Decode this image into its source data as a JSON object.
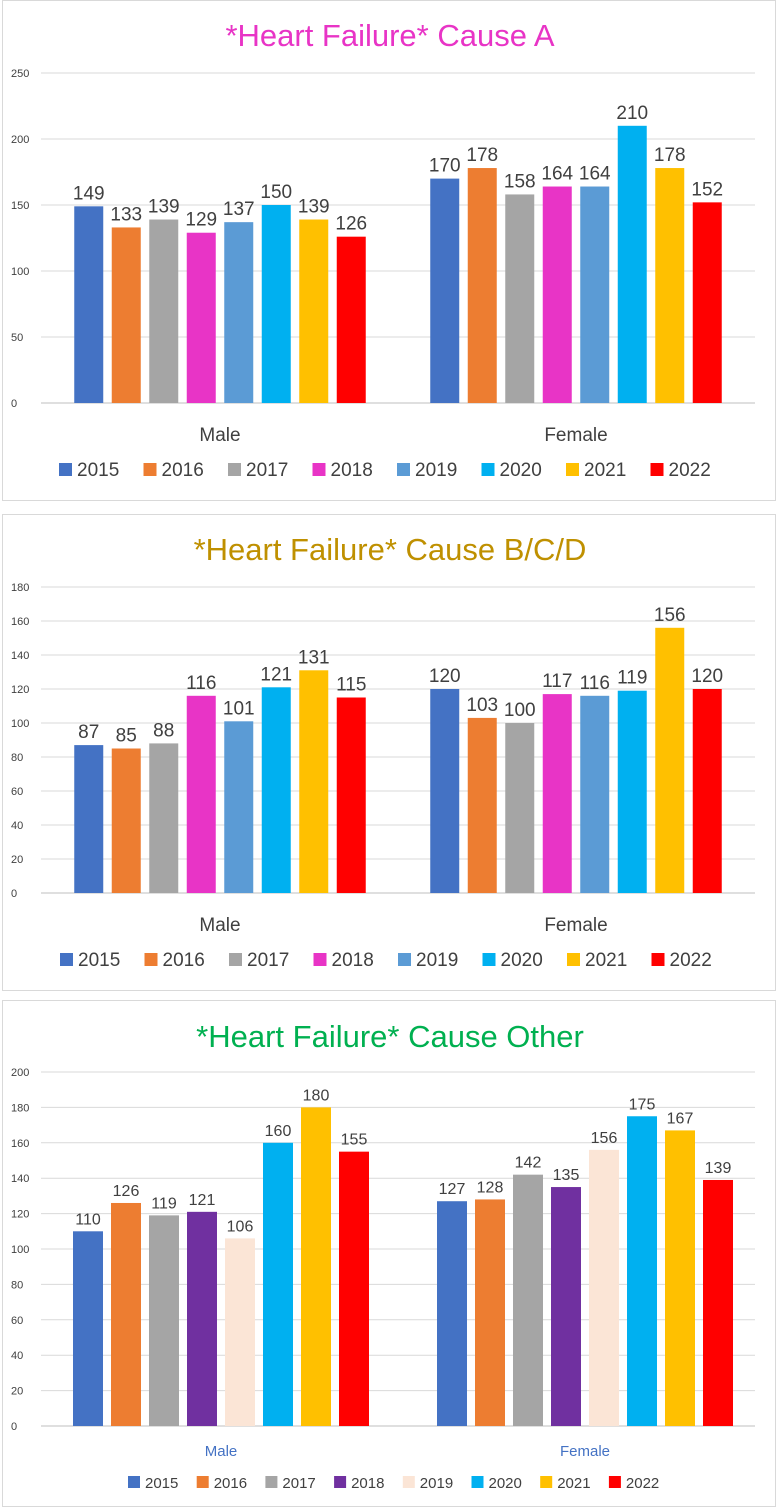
{
  "chart_data": [
    {
      "type": "bar",
      "title": "*Heart Failure* Cause A",
      "title_color": "#e834c6",
      "categories": [
        "Male",
        "Female"
      ],
      "ylim": [
        0,
        250
      ],
      "yticks": [
        "0",
        "50",
        "100",
        "150",
        "200",
        "250"
      ],
      "grid": true,
      "legend": "bottom",
      "series": [
        {
          "name": "2015",
          "color": "#4472c4",
          "values": [
            149,
            170
          ]
        },
        {
          "name": "2016",
          "color": "#ed7d31",
          "values": [
            133,
            178
          ]
        },
        {
          "name": "2017",
          "color": "#a5a5a5",
          "values": [
            139,
            158
          ]
        },
        {
          "name": "2018",
          "color": "#e834c6",
          "values": [
            129,
            164
          ]
        },
        {
          "name": "2019",
          "color": "#5b9bd5",
          "values": [
            137,
            164
          ]
        },
        {
          "name": "2020",
          "color": "#00b0f0",
          "values": [
            150,
            210
          ]
        },
        {
          "name": "2021",
          "color": "#ffc000",
          "values": [
            139,
            178
          ]
        },
        {
          "name": "2022",
          "color": "#ff0000",
          "values": [
            126,
            152
          ]
        }
      ]
    },
    {
      "type": "bar",
      "title": "*Heart Failure* Cause B/C/D",
      "title_color": "#bf9000",
      "categories": [
        "Male",
        "Female"
      ],
      "ylim": [
        0,
        180
      ],
      "yticks": [
        "0",
        "20",
        "40",
        "60",
        "80",
        "100",
        "120",
        "140",
        "160",
        "180"
      ],
      "grid": true,
      "legend": "bottom",
      "series": [
        {
          "name": "2015",
          "color": "#4472c4",
          "values": [
            87,
            120
          ]
        },
        {
          "name": "2016",
          "color": "#ed7d31",
          "values": [
            85,
            103
          ]
        },
        {
          "name": "2017",
          "color": "#a5a5a5",
          "values": [
            88,
            100
          ]
        },
        {
          "name": "2018",
          "color": "#e834c6",
          "values": [
            116,
            117
          ]
        },
        {
          "name": "2019",
          "color": "#5b9bd5",
          "values": [
            101,
            116
          ]
        },
        {
          "name": "2020",
          "color": "#00b0f0",
          "values": [
            121,
            119
          ]
        },
        {
          "name": "2021",
          "color": "#ffc000",
          "values": [
            131,
            156
          ]
        },
        {
          "name": "2022",
          "color": "#ff0000",
          "values": [
            115,
            120
          ]
        }
      ]
    },
    {
      "type": "bar",
      "title": "*Heart Failure* Cause Other",
      "title_color": "#00b050",
      "categories": [
        "Male",
        "Female"
      ],
      "category_label_color": "#4472c4",
      "ylim": [
        0,
        200
      ],
      "yticks": [
        "0",
        "20",
        "40",
        "60",
        "80",
        "100",
        "120",
        "140",
        "160",
        "180",
        "200"
      ],
      "grid": true,
      "legend": "bottom",
      "series": [
        {
          "name": "2015",
          "color": "#4472c4",
          "values": [
            110,
            127
          ]
        },
        {
          "name": "2016",
          "color": "#ed7d31",
          "values": [
            126,
            128
          ]
        },
        {
          "name": "2017",
          "color": "#a5a5a5",
          "values": [
            119,
            142
          ]
        },
        {
          "name": "2018",
          "color": "#7030a0",
          "values": [
            121,
            135
          ]
        },
        {
          "name": "2019",
          "color": "#fbe5d6",
          "values": [
            106,
            156
          ]
        },
        {
          "name": "2020",
          "color": "#00b0f0",
          "values": [
            160,
            175
          ]
        },
        {
          "name": "2021",
          "color": "#ffc000",
          "values": [
            180,
            167
          ]
        },
        {
          "name": "2022",
          "color": "#ff0000",
          "values": [
            155,
            139
          ]
        }
      ]
    }
  ]
}
